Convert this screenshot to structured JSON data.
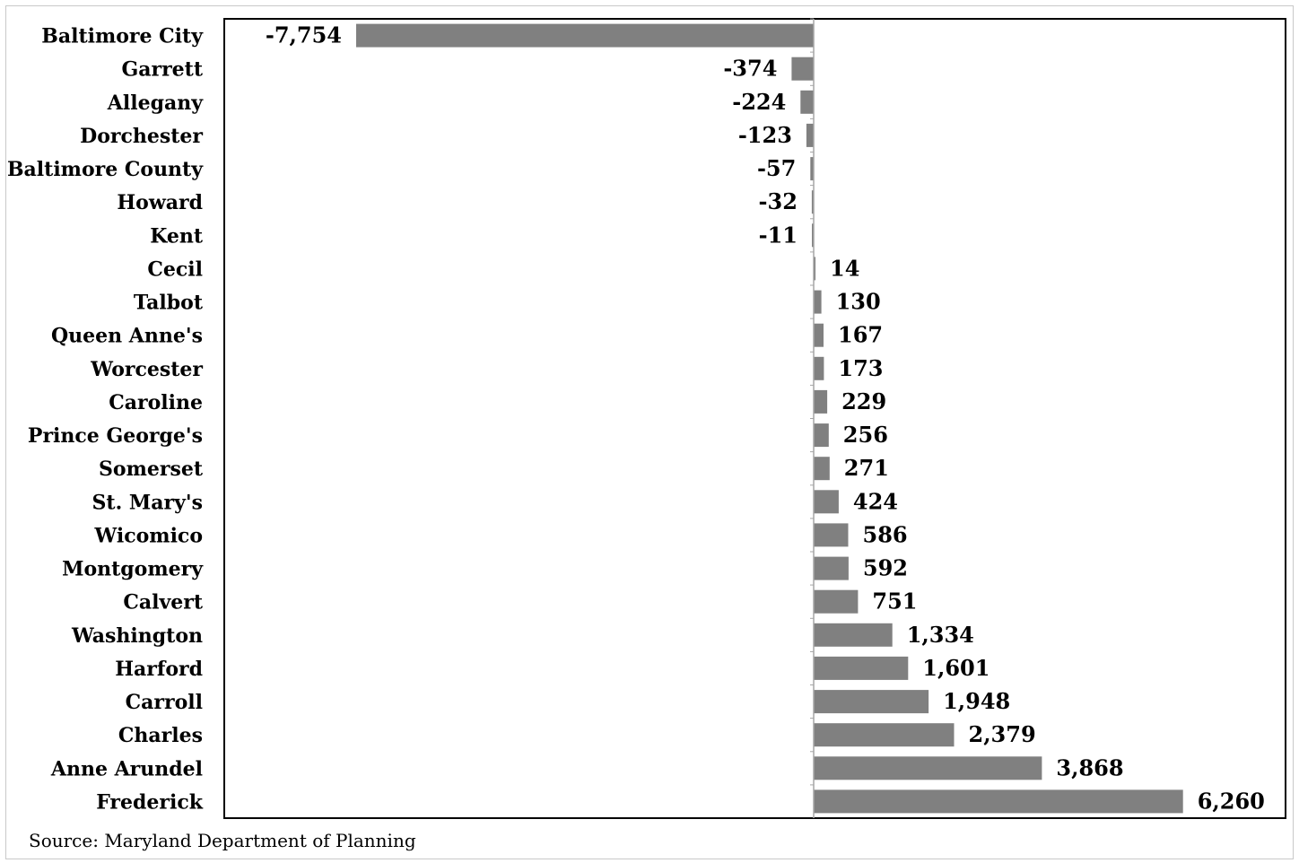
{
  "chart_data": {
    "type": "bar",
    "orientation": "horizontal",
    "categories": [
      "Baltimore City",
      "Garrett",
      "Allegany",
      "Dorchester",
      "Baltimore County",
      "Howard",
      "Kent",
      "Cecil",
      "Talbot",
      "Queen Anne's",
      "Worcester",
      "Caroline",
      "Prince George's",
      "Somerset",
      "St. Mary's",
      "Wicomico",
      "Montgomery",
      "Calvert",
      "Washington",
      "Harford",
      "Carroll",
      "Charles",
      "Anne Arundel",
      "Frederick"
    ],
    "values": [
      -7754,
      -374,
      -224,
      -123,
      -57,
      -32,
      -11,
      14,
      130,
      167,
      173,
      229,
      256,
      271,
      424,
      586,
      592,
      751,
      1334,
      1601,
      1948,
      2379,
      3868,
      6260
    ],
    "value_labels": [
      "-7,754",
      "-374",
      "-224",
      "-123",
      "-57",
      "-32",
      "-11",
      "14",
      "130",
      "167",
      "173",
      "229",
      "256",
      "271",
      "424",
      "586",
      "592",
      "751",
      "1,334",
      "1,601",
      "1,948",
      "2,379",
      "3,868",
      "6,260"
    ],
    "xlim": [
      -8000,
      8000
    ],
    "bar_color": "#808080",
    "grid": false,
    "legend": "none",
    "title": "",
    "xlabel": "",
    "ylabel": ""
  },
  "source": "Source: Maryland Department of Planning"
}
